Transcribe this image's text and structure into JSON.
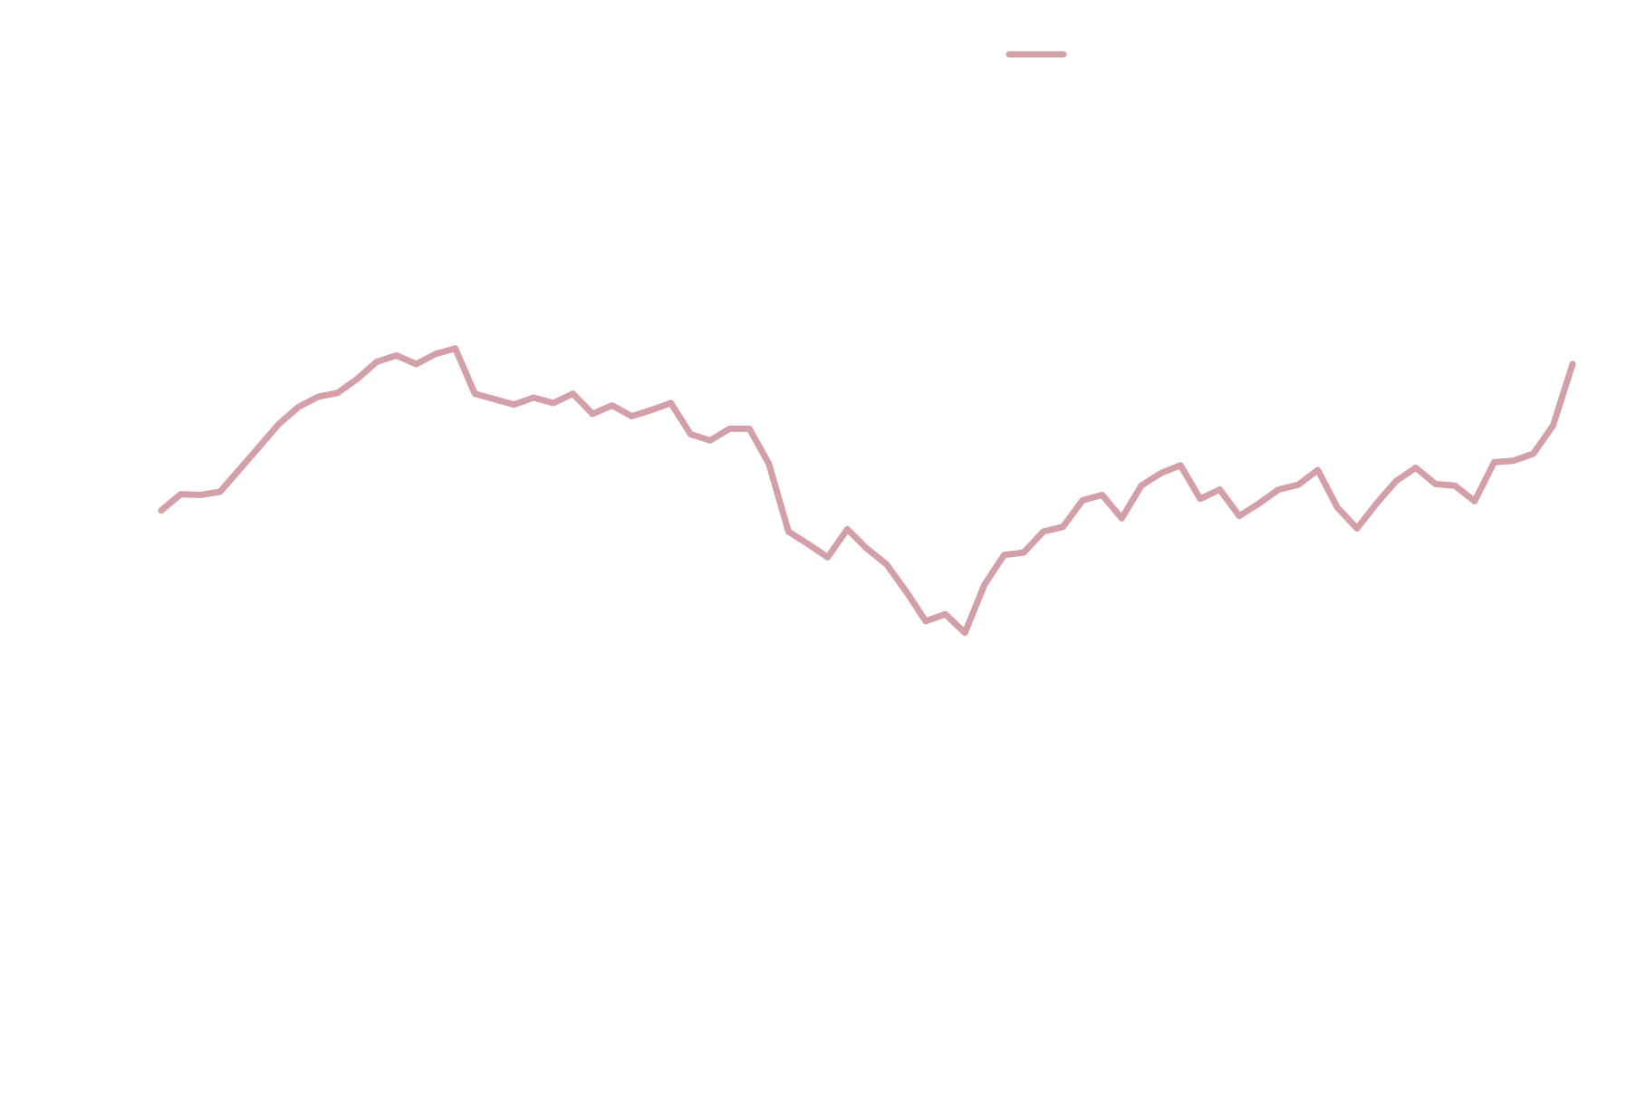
{
  "chart_data": {
    "type": "line",
    "title": "",
    "xlabel": "",
    "ylabel": "",
    "grid": false,
    "axes_visible": false,
    "legend_placement": "top-center",
    "xlim": [
      0,
      432
    ],
    "ylim": [
      0,
      100
    ],
    "series": [
      {
        "color": "#d4a0a8",
        "x": [
          0,
          6,
          12,
          18,
          24,
          30,
          36,
          42,
          48,
          54,
          60,
          66,
          72,
          78,
          84,
          90,
          96,
          102,
          108,
          114,
          120,
          126,
          132,
          138,
          144,
          150,
          156,
          162,
          168,
          174,
          180,
          186,
          192,
          198,
          204,
          210,
          216,
          222,
          228,
          234,
          240,
          246,
          252,
          258,
          264,
          270,
          276,
          282,
          288,
          294,
          300,
          306,
          312,
          318,
          324,
          330,
          336,
          342,
          348,
          354,
          360,
          366,
          372,
          378,
          384,
          390,
          396,
          402,
          408,
          414,
          420,
          426,
          432
        ],
        "values": [
          61.2,
          63.3,
          63.2,
          63.6,
          66.5,
          69.4,
          72.3,
          74.5,
          75.8,
          76.3,
          78.1,
          80.3,
          81.1,
          80.0,
          81.3,
          82.0,
          76.2,
          75.5,
          74.8,
          75.7,
          75.0,
          76.2,
          73.6,
          74.7,
          73.3,
          74.1,
          75.0,
          71.0,
          70.2,
          71.7,
          71.7,
          67.2,
          58.5,
          56.9,
          55.2,
          58.8,
          56.3,
          54.3,
          50.8,
          47.0,
          47.9,
          45.5,
          51.7,
          55.5,
          55.8,
          58.5,
          59.1,
          62.5,
          63.2,
          60.2,
          64.4,
          66.0,
          67.0,
          62.7,
          63.9,
          60.5,
          62.1,
          63.9,
          64.5,
          66.4,
          61.6,
          58.9,
          62.1,
          65.0,
          66.7,
          64.6,
          64.4,
          62.4,
          67.4,
          67.6,
          68.5,
          72.1,
          80.0
        ]
      }
    ]
  }
}
